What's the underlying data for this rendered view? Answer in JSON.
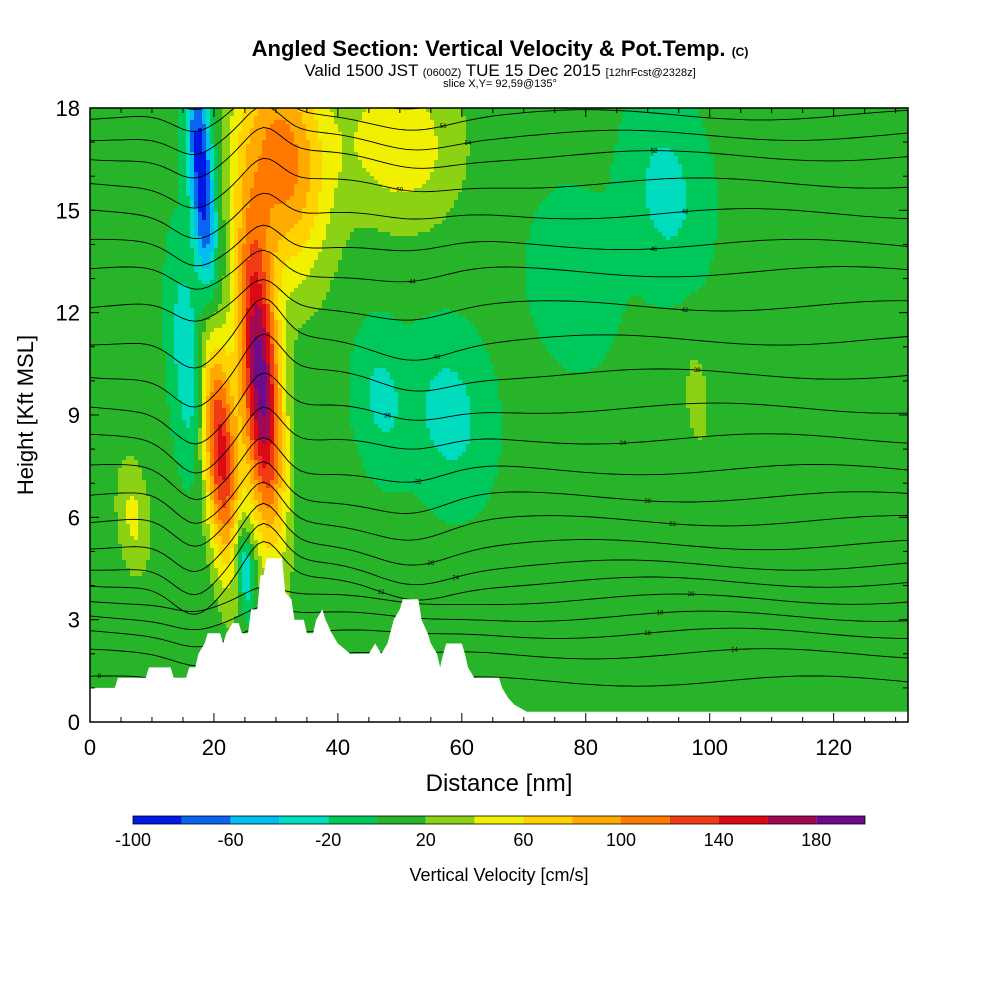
{
  "header": {
    "title": "Angled Section: Vertical Velocity & Pot.Temp.",
    "title_unit": "(C)",
    "valid_prefix": "Valid 1500 JST",
    "valid_zulu": "(0600Z)",
    "valid_date": "TUE 15 Dec 2015",
    "forecast": "[12hrFcst@2328z]",
    "slice": "slice X,Y= 92,59@135°"
  },
  "chart_data": {
    "type": "heatmap",
    "xlabel": "Distance [nm]",
    "ylabel": "Height [Kft MSL]",
    "xlim": [
      0,
      132
    ],
    "ylim": [
      0,
      18
    ],
    "x_ticks": [
      0,
      20,
      40,
      60,
      80,
      100,
      120
    ],
    "y_ticks": [
      0,
      3,
      6,
      9,
      12,
      15,
      18
    ],
    "colorbar": {
      "label": "Vertical Velocity [cm/s]",
      "ticks": [
        -100,
        -60,
        -20,
        20,
        60,
        100,
        140,
        180
      ],
      "bins": [
        {
          "min": -100,
          "max": -80,
          "color": "#0018e6"
        },
        {
          "min": -80,
          "max": -60,
          "color": "#0a64f0"
        },
        {
          "min": -60,
          "max": -40,
          "color": "#00bef0"
        },
        {
          "min": -40,
          "max": -20,
          "color": "#00dcbe"
        },
        {
          "min": -20,
          "max": 0,
          "color": "#00c85a"
        },
        {
          "min": 0,
          "max": 20,
          "color": "#28b428"
        },
        {
          "min": 20,
          "max": 40,
          "color": "#8cd214"
        },
        {
          "min": 40,
          "max": 60,
          "color": "#f0f000"
        },
        {
          "min": 60,
          "max": 80,
          "color": "#ffd200"
        },
        {
          "min": 80,
          "max": 100,
          "color": "#ffaa00"
        },
        {
          "min": 100,
          "max": 120,
          "color": "#ff7800"
        },
        {
          "min": 120,
          "max": 140,
          "color": "#f03c14"
        },
        {
          "min": 140,
          "max": 160,
          "color": "#dc0a14"
        },
        {
          "min": 160,
          "max": 180,
          "color": "#a00a50"
        },
        {
          "min": 180,
          "max": 200,
          "color": "#6e0a8c"
        }
      ]
    },
    "background_velocity": 5,
    "features": [
      {
        "kind": "updraft",
        "x": 27.5,
        "y": 10.0,
        "value": 190
      },
      {
        "kind": "updraft",
        "x": 21.0,
        "y": 8.0,
        "value": 150
      },
      {
        "kind": "updraft",
        "x": 31.0,
        "y": 16.5,
        "value": 110
      },
      {
        "kind": "updraft",
        "x": 50.0,
        "y": 17.0,
        "value": 55
      },
      {
        "kind": "updraft",
        "x": 7.0,
        "y": 6.0,
        "value": 45
      },
      {
        "kind": "updraft",
        "x": 98.0,
        "y": 9.5,
        "value": 28
      },
      {
        "kind": "downdraft",
        "x": 18.0,
        "y": 16.0,
        "value": -100
      },
      {
        "kind": "downdraft",
        "x": 16.0,
        "y": 10.5,
        "value": -45
      },
      {
        "kind": "downdraft",
        "x": 25.0,
        "y": 4.5,
        "value": -60
      },
      {
        "kind": "downdraft",
        "x": 58.0,
        "y": 9.0,
        "value": -30
      },
      {
        "kind": "downdraft",
        "x": 47.0,
        "y": 9.5,
        "value": -25
      },
      {
        "kind": "downdraft",
        "x": 93.0,
        "y": 15.5,
        "value": -28
      },
      {
        "kind": "downdraft",
        "x": 78.0,
        "y": 13.0,
        "value": -12
      }
    ],
    "terrain": [
      {
        "x": 0,
        "y": 1.0
      },
      {
        "x": 4,
        "y": 1.0
      },
      {
        "x": 4.5,
        "y": 1.3
      },
      {
        "x": 9,
        "y": 1.3
      },
      {
        "x": 9.5,
        "y": 1.6
      },
      {
        "x": 13,
        "y": 1.6
      },
      {
        "x": 13.5,
        "y": 1.3
      },
      {
        "x": 15.5,
        "y": 1.3
      },
      {
        "x": 16,
        "y": 1.6
      },
      {
        "x": 17,
        "y": 1.6
      },
      {
        "x": 17.5,
        "y": 2.0
      },
      {
        "x": 18.5,
        "y": 2.3
      },
      {
        "x": 19,
        "y": 2.6
      },
      {
        "x": 21,
        "y": 2.6
      },
      {
        "x": 21.5,
        "y": 2.3
      },
      {
        "x": 22,
        "y": 2.6
      },
      {
        "x": 23,
        "y": 2.9
      },
      {
        "x": 24,
        "y": 2.9
      },
      {
        "x": 24.5,
        "y": 2.6
      },
      {
        "x": 25.5,
        "y": 2.6
      },
      {
        "x": 26,
        "y": 3.3
      },
      {
        "x": 27,
        "y": 3.3
      },
      {
        "x": 27.5,
        "y": 4.3
      },
      {
        "x": 28,
        "y": 4.3
      },
      {
        "x": 28.5,
        "y": 4.8
      },
      {
        "x": 31,
        "y": 4.8
      },
      {
        "x": 31.5,
        "y": 3.8
      },
      {
        "x": 32.5,
        "y": 3.6
      },
      {
        "x": 33,
        "y": 3.0
      },
      {
        "x": 34.5,
        "y": 3.0
      },
      {
        "x": 35,
        "y": 2.6
      },
      {
        "x": 36,
        "y": 2.6
      },
      {
        "x": 36.5,
        "y": 3.0
      },
      {
        "x": 37.5,
        "y": 3.3
      },
      {
        "x": 38,
        "y": 3.0
      },
      {
        "x": 39,
        "y": 2.6
      },
      {
        "x": 40,
        "y": 2.3
      },
      {
        "x": 42,
        "y": 2.0
      },
      {
        "x": 45,
        "y": 2.0
      },
      {
        "x": 46,
        "y": 2.3
      },
      {
        "x": 47,
        "y": 2.0
      },
      {
        "x": 48,
        "y": 2.3
      },
      {
        "x": 49,
        "y": 3.0
      },
      {
        "x": 50,
        "y": 3.3
      },
      {
        "x": 50.5,
        "y": 3.6
      },
      {
        "x": 53,
        "y": 3.6
      },
      {
        "x": 53.5,
        "y": 3.0
      },
      {
        "x": 54.5,
        "y": 2.6
      },
      {
        "x": 55,
        "y": 2.3
      },
      {
        "x": 56,
        "y": 2.0
      },
      {
        "x": 56.5,
        "y": 1.6
      },
      {
        "x": 57,
        "y": 2.0
      },
      {
        "x": 57.5,
        "y": 2.3
      },
      {
        "x": 60,
        "y": 2.3
      },
      {
        "x": 60.5,
        "y": 2.0
      },
      {
        "x": 61,
        "y": 1.6
      },
      {
        "x": 62,
        "y": 1.3
      },
      {
        "x": 66,
        "y": 1.3
      },
      {
        "x": 66.5,
        "y": 1.0
      },
      {
        "x": 67.5,
        "y": 0.7
      },
      {
        "x": 68.5,
        "y": 0.5
      },
      {
        "x": 70.5,
        "y": 0.3
      },
      {
        "x": 132,
        "y": 0.3
      }
    ],
    "isentropes": [
      {
        "base": 1.2,
        "label": "8",
        "lx": 1.5
      },
      {
        "base": 2.0,
        "label": "14",
        "lx": 104
      },
      {
        "base": 2.6,
        "label": "16",
        "lx": 90
      },
      {
        "base": 3.1,
        "label": "18",
        "lx": 92
      },
      {
        "base": 3.6,
        "label": "20",
        "lx": 97
      },
      {
        "base": 4.1,
        "label": "22",
        "lx": 47
      },
      {
        "base": 4.6,
        "label": "24",
        "lx": 59
      },
      {
        "base": 5.2,
        "label": "26",
        "lx": 55
      },
      {
        "base": 5.9,
        "label": "28",
        "lx": 94
      },
      {
        "base": 6.6,
        "label": "30",
        "lx": 90
      },
      {
        "base": 7.4,
        "label": "32",
        "lx": 53
      },
      {
        "base": 8.3,
        "label": "34",
        "lx": 86
      },
      {
        "base": 9.2,
        "label": "36",
        "lx": 48
      },
      {
        "base": 10.2,
        "label": "38",
        "lx": 98
      },
      {
        "base": 11.2,
        "label": "40",
        "lx": 56
      },
      {
        "base": 12.2,
        "label": "42",
        "lx": 96
      },
      {
        "base": 13.2,
        "label": "44",
        "lx": 52
      },
      {
        "base": 14.0,
        "label": "46",
        "lx": 91
      },
      {
        "base": 14.9,
        "label": "48",
        "lx": 96
      },
      {
        "base": 15.8,
        "label": "50",
        "lx": 50
      },
      {
        "base": 16.6,
        "label": "52",
        "lx": 91
      },
      {
        "base": 17.2,
        "label": "54",
        "lx": 61
      },
      {
        "base": 17.8,
        "label": "56",
        "lx": 57
      },
      {
        "base": 18.4,
        "label": "58",
        "lx": 100
      }
    ]
  }
}
